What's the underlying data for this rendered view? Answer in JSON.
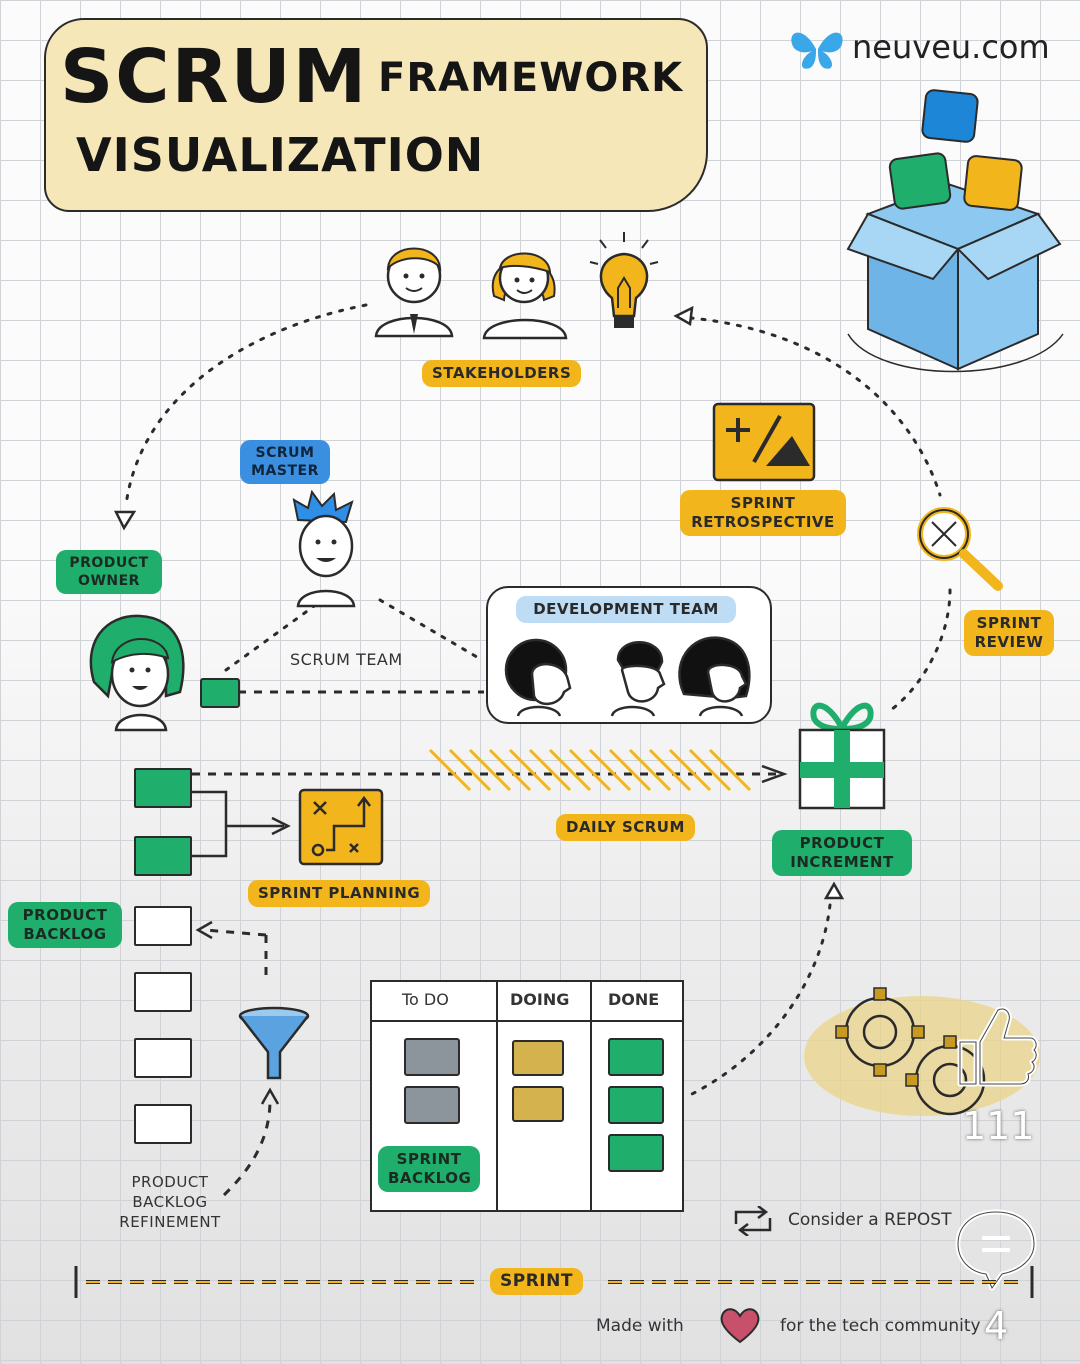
{
  "title": {
    "line1": "SCRUM",
    "line1b": "FRAMEWORK",
    "line2": "VISUALIZATION"
  },
  "brand": {
    "name": "neuveu.com"
  },
  "labels": {
    "stakeholders": "STAKEHOLDERS",
    "scrum_master": "SCRUM MASTER",
    "product_owner": "PRODUCT OWNER",
    "scrum_team": "SCRUM TEAM",
    "development_team": "DEVELOPMENT TEAM",
    "sprint_retrospective": "SPRINT RETROSPECTIVE",
    "sprint_review": "SPRINT REVIEW",
    "daily_scrum": "DAILY SCRUM",
    "product_increment": "PRODUCT INCREMENT",
    "sprint_planning": "SPRINT PLANNING",
    "product_backlog": "PRODUCT BACKLOG",
    "product_backlog_refinement": "PRODUCT BACKLOG REFINEMENT",
    "sprint_backlog": "SPRINT BACKLOG",
    "sprint": "SPRINT"
  },
  "board": {
    "columns": [
      "To DO",
      "DOING",
      "DONE"
    ]
  },
  "footer": {
    "consider": "Consider a REPOST",
    "made_with": "Made with",
    "for_community": "for the tech community"
  },
  "overlay": {
    "likes": "111",
    "comments": "4"
  },
  "colors": {
    "yellow": "#f2b51c",
    "green": "#1fae6b",
    "blue": "#3a8fe0",
    "light_blue": "#bfdcf5",
    "gray_card": "#8c949c",
    "tan_card": "#d4b24e"
  }
}
